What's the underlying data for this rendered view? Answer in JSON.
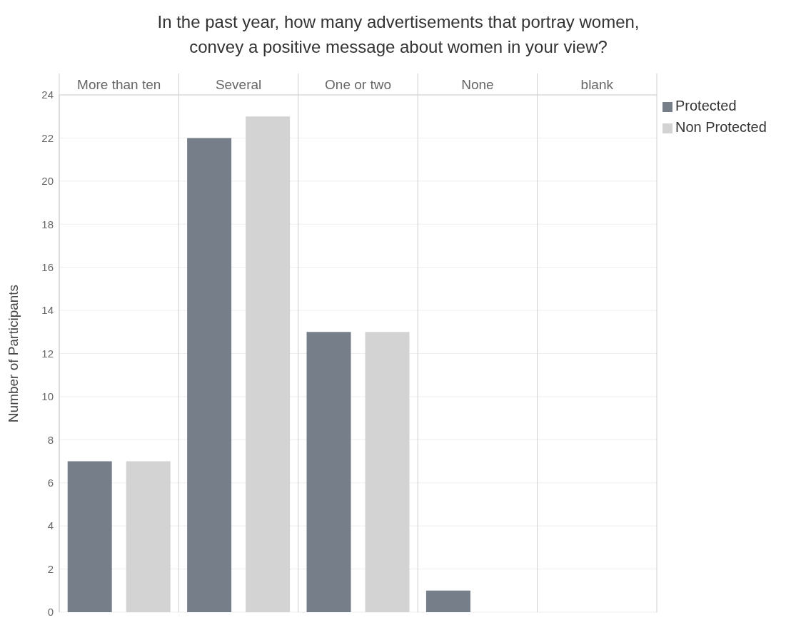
{
  "chart_data": {
    "type": "bar",
    "title": "In the past year, how many advertisements that portray women,\nconvey a positive message about women in your view?",
    "ylabel": "Number of Participants",
    "categories": [
      "More than ten",
      "Several",
      "One or two",
      "None",
      "blank"
    ],
    "series": [
      {
        "name": "Protected",
        "color": "#767e8a",
        "values": [
          7,
          22,
          13,
          1,
          0
        ]
      },
      {
        "name": "Non Protected",
        "color": "#d3d3d3",
        "values": [
          7,
          23,
          13,
          0,
          0
        ]
      }
    ],
    "ylim": [
      0,
      24
    ],
    "yticks": [
      0,
      2,
      4,
      6,
      8,
      10,
      12,
      14,
      16,
      18,
      20,
      22,
      24
    ],
    "grid": true,
    "legend": "top right"
  }
}
